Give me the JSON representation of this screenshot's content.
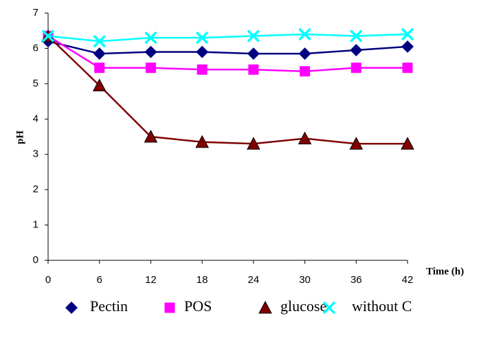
{
  "chart_data": {
    "type": "line",
    "x": [
      0,
      6,
      12,
      18,
      24,
      30,
      36,
      42
    ],
    "xlim": [
      0,
      42
    ],
    "xticks": [
      0,
      6,
      12,
      18,
      24,
      30,
      36,
      42
    ],
    "ylim": [
      0,
      7
    ],
    "yticks": [
      0,
      1,
      2,
      3,
      4,
      5,
      6,
      7
    ],
    "x_label": "Time (h)",
    "y_label": "pH",
    "legend": "bottom",
    "series": [
      {
        "name": "Pectin",
        "color": "#000080",
        "marker": "diamond",
        "values": [
          6.2,
          5.85,
          5.9,
          5.9,
          5.85,
          5.85,
          5.95,
          6.05
        ]
      },
      {
        "name": "POS",
        "color": "#ff00ff",
        "marker": "square",
        "values": [
          6.35,
          5.45,
          5.45,
          5.4,
          5.4,
          5.35,
          5.45,
          5.45
        ]
      },
      {
        "name": "glucose",
        "color": "#800000",
        "marker": "triangle",
        "values": [
          6.35,
          4.95,
          3.5,
          3.35,
          3.3,
          3.45,
          3.3,
          3.3
        ]
      },
      {
        "name": "without C",
        "color": "#00ffff",
        "marker": "x",
        "values": [
          6.35,
          6.2,
          6.3,
          6.3,
          6.35,
          6.4,
          6.35,
          6.4
        ]
      }
    ]
  }
}
